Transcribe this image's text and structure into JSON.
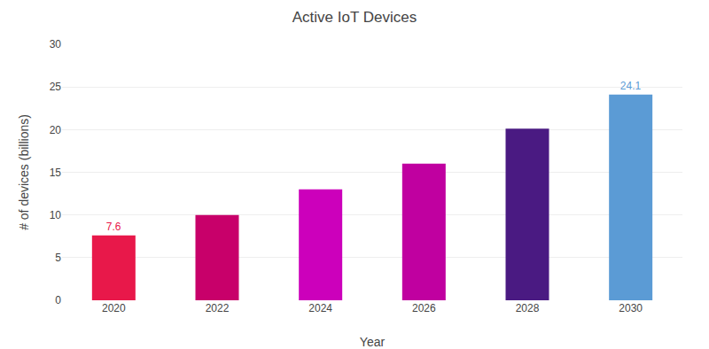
{
  "chart_data": {
    "type": "bar",
    "title": "Active IoT Devices",
    "xlabel": "Year",
    "ylabel": "# of devices (billions)",
    "categories": [
      "2020",
      "2022",
      "2024",
      "2026",
      "2028",
      "2030"
    ],
    "values": [
      7.6,
      10.0,
      13.0,
      16.0,
      20.1,
      24.1
    ],
    "value_labels": [
      "7.6",
      null,
      null,
      null,
      null,
      "24.1"
    ],
    "colors": [
      "#e8184a",
      "#c8006a",
      "#cc00bb",
      "#c000a0",
      "#4a1a82",
      "#5b9bd5"
    ],
    "ylim": [
      0,
      30
    ],
    "yticks": [
      0,
      5,
      10,
      15,
      20,
      25,
      30
    ],
    "grid": true
  }
}
